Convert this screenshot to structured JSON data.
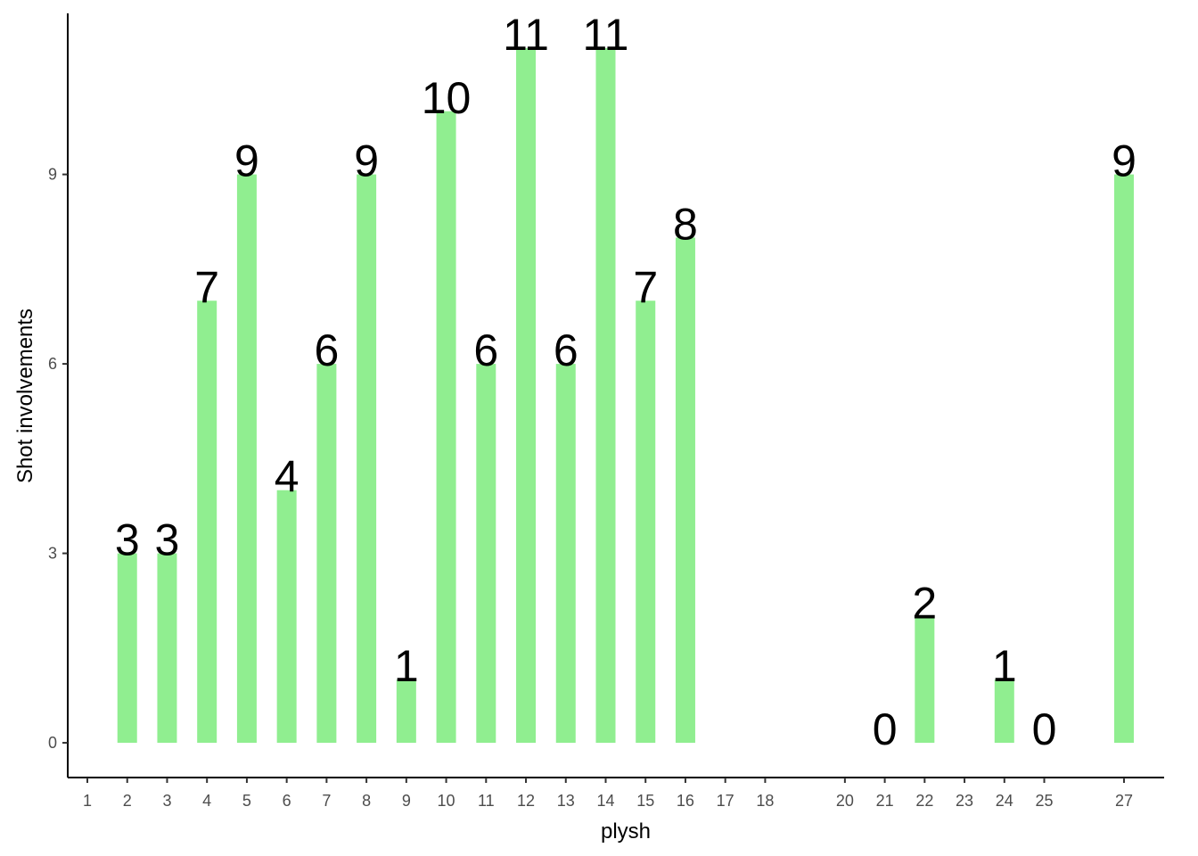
{
  "chart_data": {
    "type": "bar",
    "x_label": "plysh",
    "y_label": "Shot involvements",
    "categories": [
      "1",
      "2",
      "3",
      "4",
      "5",
      "6",
      "7",
      "8",
      "9",
      "10",
      "11",
      "12",
      "13",
      "14",
      "15",
      "16",
      "17",
      "18",
      null,
      "20",
      "21",
      "22",
      "23",
      "24",
      "25",
      null,
      "27"
    ],
    "values": [
      null,
      3,
      3,
      7,
      9,
      4,
      6,
      9,
      1,
      10,
      6,
      11,
      6,
      11,
      7,
      8,
      null,
      null,
      null,
      null,
      0,
      2,
      null,
      1,
      0,
      null,
      9
    ],
    "color": "#90ee90",
    "ylim": [
      -0.55,
      11.55
    ],
    "yticks": [
      0,
      3,
      6,
      9
    ],
    "grid": false
  }
}
